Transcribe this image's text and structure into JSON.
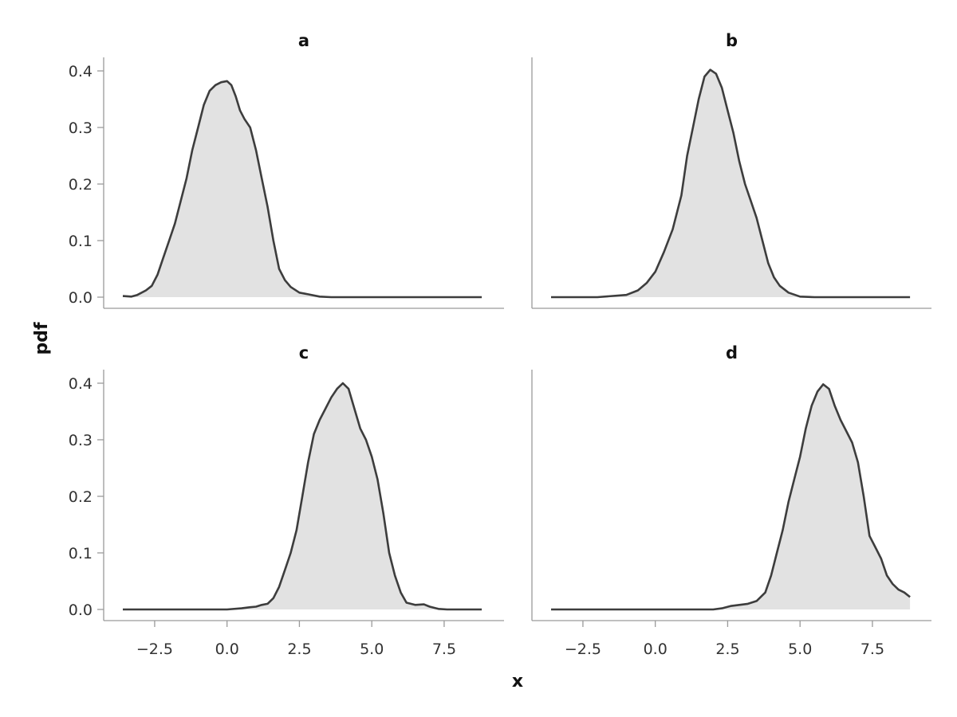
{
  "chart_data": {
    "type": "area",
    "xlabel": "x",
    "ylabel": "pdf",
    "xlim": [
      -3.7,
      8.8
    ],
    "ylim": [
      0,
      0.4
    ],
    "xticks": [
      -2.5,
      0.0,
      2.5,
      5.0,
      7.5
    ],
    "xtick_labels": [
      "−2.5",
      "0.0",
      "2.5",
      "5.0",
      "7.5"
    ],
    "yticks": [
      0.0,
      0.1,
      0.2,
      0.3,
      0.4
    ],
    "ytick_labels": [
      "0.0",
      "0.1",
      "0.2",
      "0.3",
      "0.4"
    ],
    "legend": "none",
    "grid": false,
    "panels": [
      {
        "title": "a",
        "x": [
          -3.6,
          -3.3,
          -3.1,
          -2.8,
          -2.6,
          -2.4,
          -2.2,
          -2.0,
          -1.8,
          -1.6,
          -1.4,
          -1.2,
          -1.0,
          -0.8,
          -0.6,
          -0.4,
          -0.2,
          0.0,
          0.15,
          0.3,
          0.45,
          0.6,
          0.8,
          1.0,
          1.2,
          1.4,
          1.6,
          1.8,
          2.0,
          2.2,
          2.5,
          2.8,
          3.2,
          3.6,
          4.0,
          5.0,
          6.0,
          7.0,
          8.0,
          8.8
        ],
        "y": [
          0.002,
          0.001,
          0.004,
          0.012,
          0.02,
          0.04,
          0.07,
          0.1,
          0.13,
          0.17,
          0.21,
          0.26,
          0.3,
          0.34,
          0.365,
          0.375,
          0.38,
          0.382,
          0.375,
          0.355,
          0.33,
          0.315,
          0.3,
          0.26,
          0.21,
          0.16,
          0.1,
          0.05,
          0.03,
          0.018,
          0.008,
          0.005,
          0.001,
          0.0,
          0.0,
          0.0,
          0.0,
          0.0,
          0.0,
          0.0
        ]
      },
      {
        "title": "b",
        "x": [
          -3.6,
          -2.0,
          -1.0,
          -0.6,
          -0.3,
          0.0,
          0.3,
          0.6,
          0.9,
          1.1,
          1.3,
          1.5,
          1.7,
          1.9,
          2.1,
          2.3,
          2.5,
          2.7,
          2.9,
          3.1,
          3.3,
          3.5,
          3.7,
          3.9,
          4.1,
          4.3,
          4.6,
          5.0,
          5.5,
          6.0,
          7.0,
          8.8
        ],
        "y": [
          0.0,
          0.0,
          0.004,
          0.012,
          0.025,
          0.045,
          0.08,
          0.12,
          0.18,
          0.25,
          0.3,
          0.35,
          0.39,
          0.402,
          0.395,
          0.37,
          0.33,
          0.29,
          0.24,
          0.2,
          0.17,
          0.14,
          0.1,
          0.06,
          0.035,
          0.02,
          0.008,
          0.001,
          0.0,
          0.0,
          0.0,
          0.0
        ]
      },
      {
        "title": "c",
        "x": [
          -3.6,
          -2.0,
          0.0,
          0.5,
          0.8,
          1.0,
          1.2,
          1.4,
          1.6,
          1.8,
          2.0,
          2.2,
          2.4,
          2.6,
          2.8,
          3.0,
          3.2,
          3.4,
          3.6,
          3.8,
          4.0,
          4.2,
          4.4,
          4.6,
          4.8,
          5.0,
          5.2,
          5.4,
          5.6,
          5.8,
          6.0,
          6.2,
          6.5,
          6.8,
          7.0,
          7.3,
          7.6,
          8.0,
          8.8
        ],
        "y": [
          0.0,
          0.0,
          0.0,
          0.002,
          0.004,
          0.005,
          0.008,
          0.01,
          0.02,
          0.04,
          0.07,
          0.1,
          0.14,
          0.2,
          0.26,
          0.31,
          0.335,
          0.355,
          0.375,
          0.39,
          0.4,
          0.39,
          0.355,
          0.32,
          0.3,
          0.27,
          0.23,
          0.17,
          0.1,
          0.06,
          0.03,
          0.012,
          0.008,
          0.009,
          0.005,
          0.001,
          0.0,
          0.0,
          0.0
        ]
      },
      {
        "title": "d",
        "x": [
          -3.6,
          -2.0,
          0.0,
          1.5,
          2.0,
          2.3,
          2.6,
          2.9,
          3.2,
          3.5,
          3.8,
          4.0,
          4.2,
          4.4,
          4.6,
          4.8,
          5.0,
          5.2,
          5.4,
          5.6,
          5.8,
          6.0,
          6.2,
          6.4,
          6.6,
          6.8,
          7.0,
          7.2,
          7.4,
          7.6,
          7.8,
          8.0,
          8.2,
          8.4,
          8.6,
          8.8
        ],
        "y": [
          0.0,
          0.0,
          0.0,
          0.0,
          0.0,
          0.002,
          0.006,
          0.008,
          0.01,
          0.015,
          0.03,
          0.06,
          0.1,
          0.14,
          0.19,
          0.23,
          0.27,
          0.32,
          0.36,
          0.385,
          0.398,
          0.39,
          0.36,
          0.335,
          0.315,
          0.295,
          0.26,
          0.2,
          0.13,
          0.11,
          0.09,
          0.06,
          0.045,
          0.035,
          0.03,
          0.022
        ]
      }
    ]
  }
}
